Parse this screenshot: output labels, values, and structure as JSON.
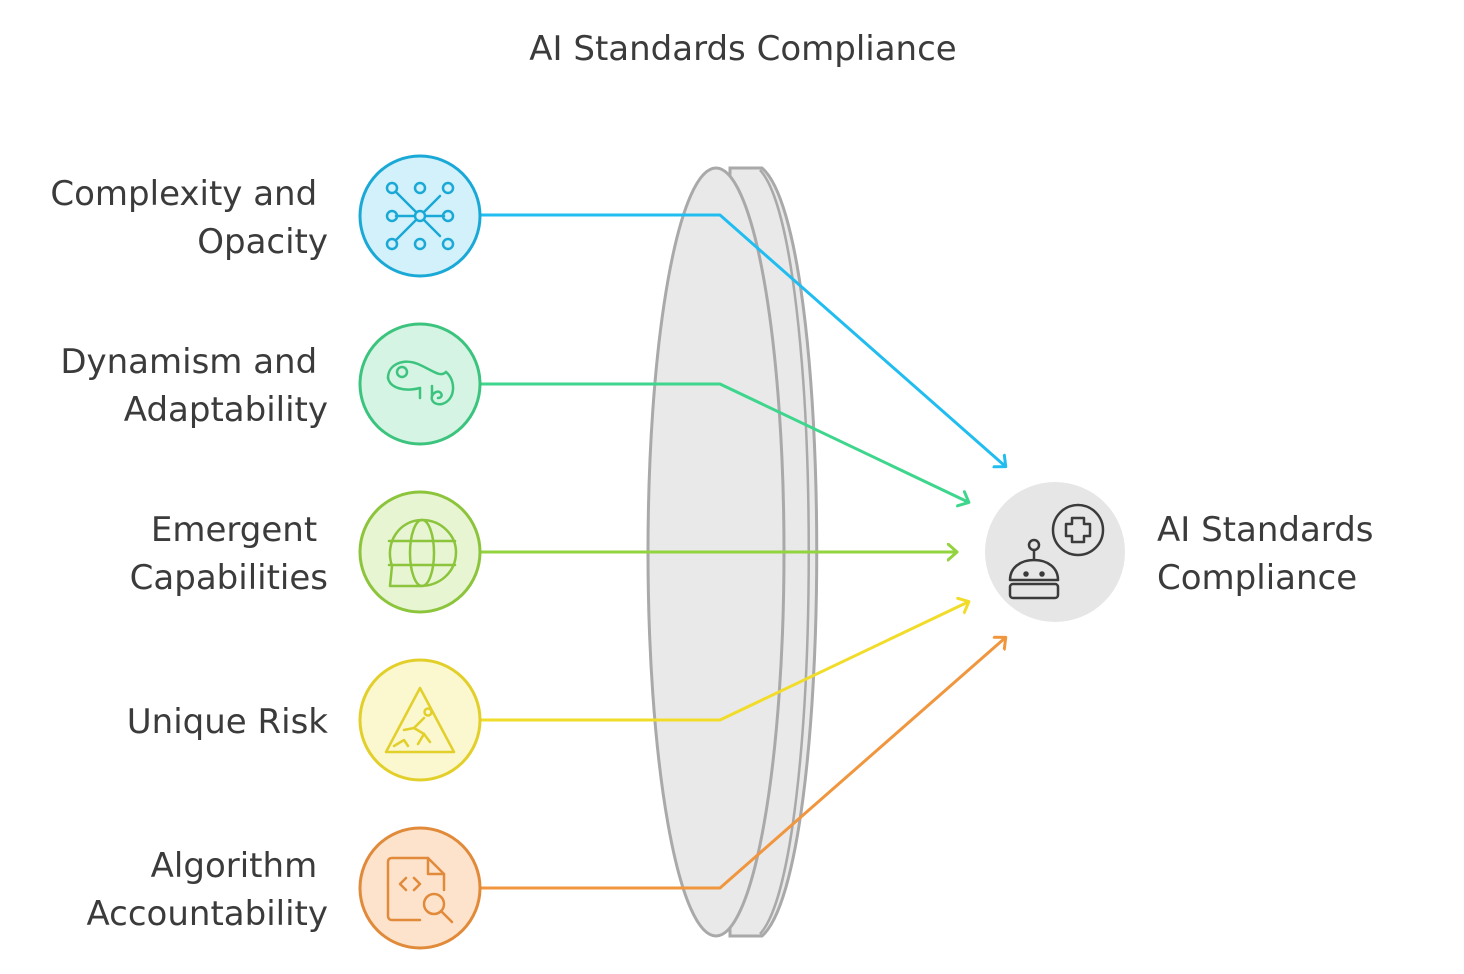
{
  "title": "AI Standards Compliance",
  "factors": [
    {
      "id": "complexity",
      "label_lines": [
        "Complexity and",
        "Opacity"
      ],
      "icon": "network-nodes-icon",
      "stroke": "#1aa9d6",
      "fill": "#d3f1fb",
      "arrow": "#22bdf0"
    },
    {
      "id": "dynamism",
      "label_lines": [
        "Dynamism and",
        "Adaptability"
      ],
      "icon": "chameleon-icon",
      "stroke": "#3cc47f",
      "fill": "#d6f4e3",
      "arrow": "#3dd68c"
    },
    {
      "id": "emergent",
      "label_lines": [
        "Emergent",
        "Capabilities"
      ],
      "icon": "globe-chat-icon",
      "stroke": "#8cc43c",
      "fill": "#e7f5d3",
      "arrow": "#93d33f"
    },
    {
      "id": "risk",
      "label_lines": [
        "Unique Risk"
      ],
      "icon": "hazard-warning-icon",
      "stroke": "#e2cf2a",
      "fill": "#fbf7cf",
      "arrow": "#f2dc2a"
    },
    {
      "id": "algorithm",
      "label_lines": [
        "Algorithm",
        "Accountability"
      ],
      "icon": "code-search-icon",
      "stroke": "#e08a3a",
      "fill": "#fde3cc",
      "arrow": "#f0963e"
    }
  ],
  "outcome": {
    "label_lines": [
      "AI Standards",
      "Compliance"
    ],
    "icon": "robot-plus-icon",
    "fill": "#e6e6e6"
  },
  "lens": {
    "fill": "#e9e9e9",
    "stroke": "#a9a9a9"
  }
}
